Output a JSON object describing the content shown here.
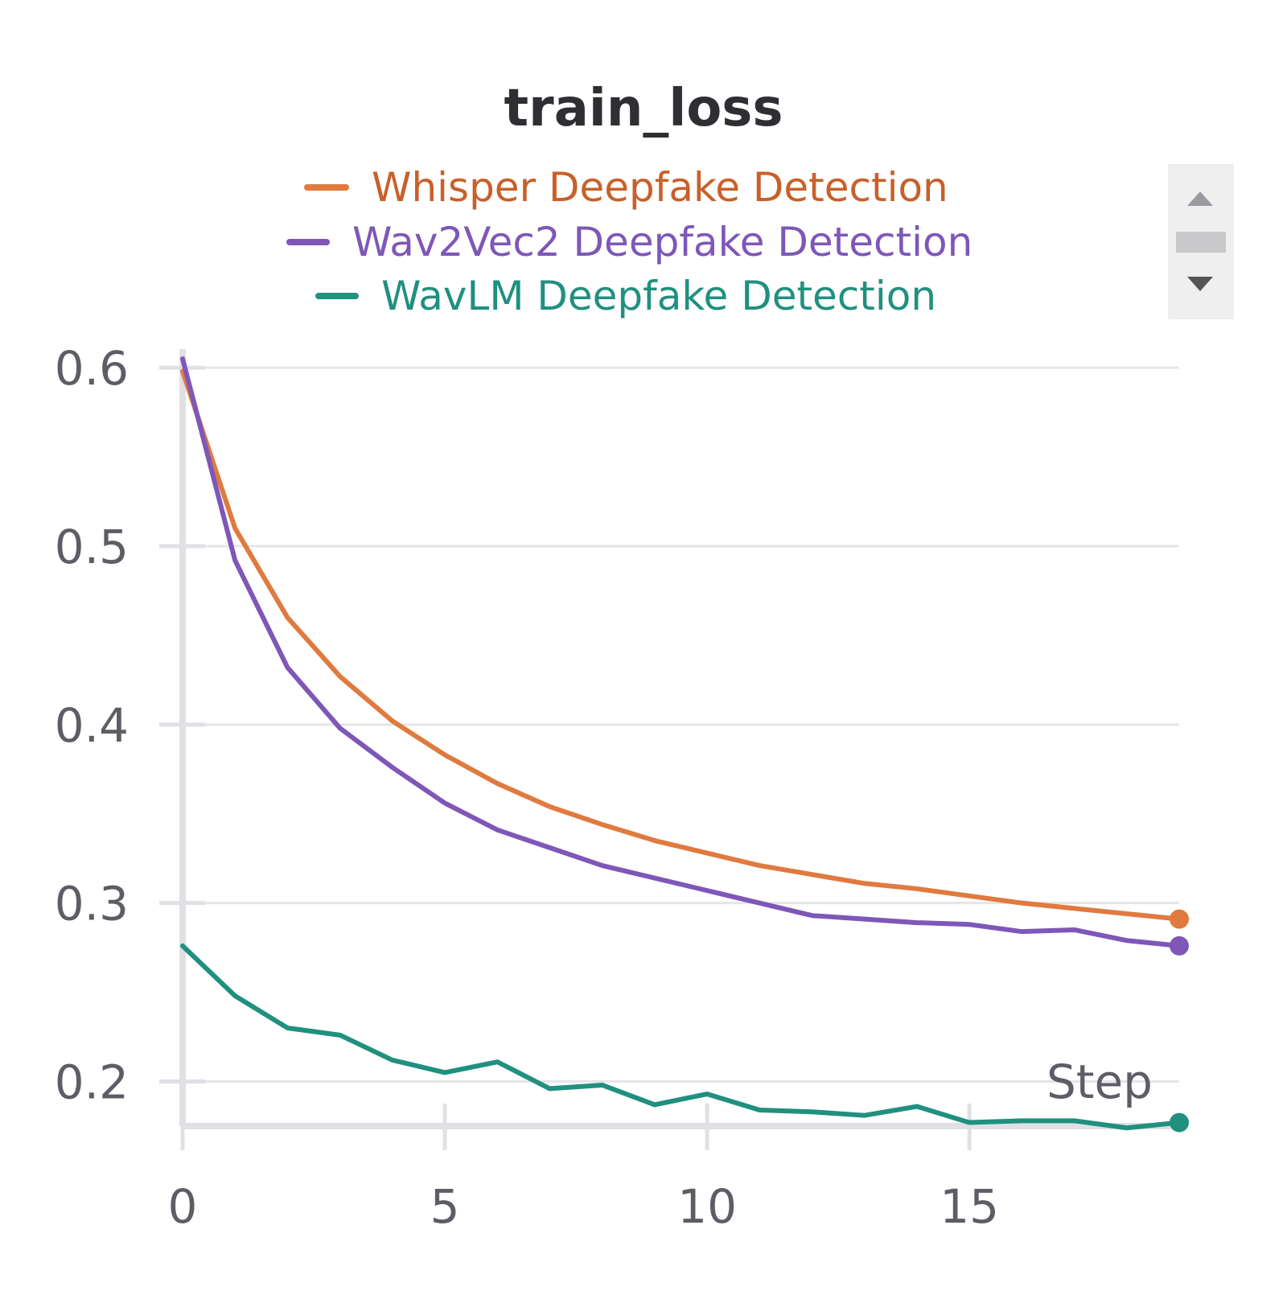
{
  "chart_data": {
    "type": "line",
    "title": "train_loss",
    "xlabel": "Step",
    "ylabel": "",
    "xlim": [
      0,
      19
    ],
    "ylim": [
      0.175,
      0.605
    ],
    "xticks": [
      0,
      5,
      10,
      15
    ],
    "yticks": [
      0.2,
      0.3,
      0.4,
      0.5,
      0.6
    ],
    "grid": true,
    "legend_position": "top",
    "x": [
      0,
      1,
      2,
      3,
      4,
      5,
      6,
      7,
      8,
      9,
      10,
      11,
      12,
      13,
      14,
      15,
      16,
      17,
      18,
      19
    ],
    "series": [
      {
        "name": "Whisper Deepfake Detection",
        "color": "#e07a3f",
        "label_color": "#c8602a",
        "values": [
          0.598,
          0.51,
          0.46,
          0.427,
          0.402,
          0.383,
          0.367,
          0.354,
          0.344,
          0.335,
          0.328,
          0.321,
          0.316,
          0.311,
          0.308,
          0.304,
          0.3,
          0.297,
          0.294,
          0.291
        ]
      },
      {
        "name": "Wav2Vec2 Deepfake Detection",
        "color": "#7e57b8",
        "label_color": "#7e57b8",
        "values": [
          0.605,
          0.492,
          0.432,
          0.398,
          0.376,
          0.356,
          0.341,
          0.331,
          0.321,
          0.314,
          0.307,
          0.3,
          0.293,
          0.291,
          0.289,
          0.288,
          0.284,
          0.285,
          0.279,
          0.276
        ]
      },
      {
        "name": "WavLM Deepfake Detection",
        "color": "#20907f",
        "label_color": "#20907f",
        "values": [
          0.276,
          0.248,
          0.23,
          0.226,
          0.212,
          0.205,
          0.211,
          0.196,
          0.198,
          0.187,
          0.193,
          0.184,
          0.183,
          0.181,
          0.186,
          0.177,
          0.178,
          0.178,
          0.174,
          0.177
        ]
      }
    ]
  },
  "legend_scroll": {
    "up_icon": "triangle-up-icon",
    "down_icon": "triangle-down-icon",
    "thumb": "scroll-thumb"
  },
  "colors": {
    "grid": "#e5e5ea",
    "axis": "#e0e0e5",
    "tick_text": "#5d5d66",
    "title": "#2f2f33",
    "scroll_bg": "#efefef",
    "scroll_icon": "#9a9aa0",
    "scroll_thumb": "#c9c9cc"
  }
}
